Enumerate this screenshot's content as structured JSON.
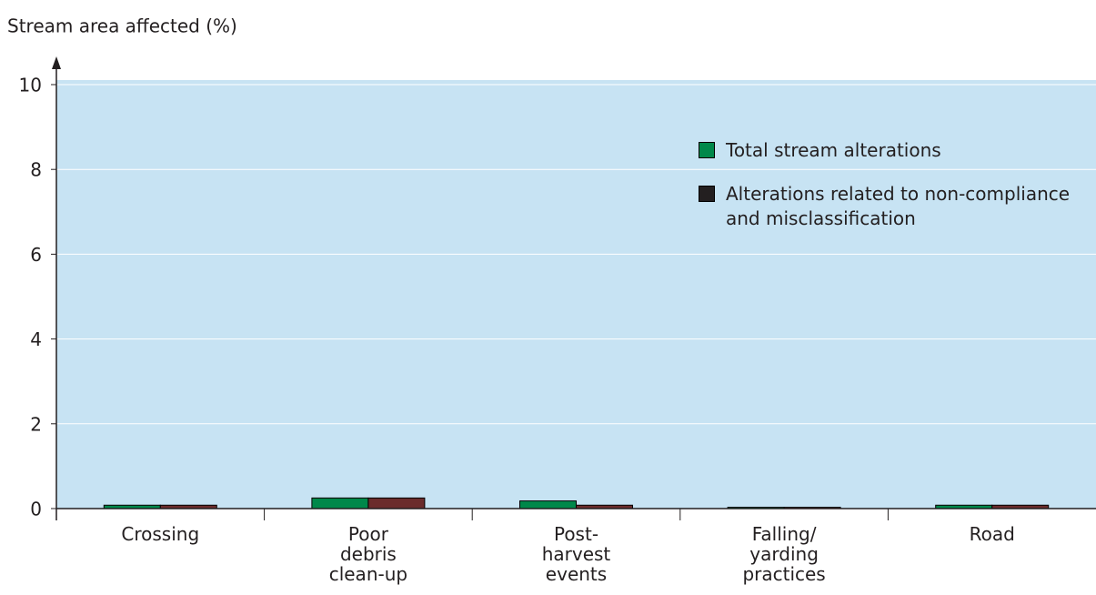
{
  "chart_data": {
    "type": "bar",
    "y_axis_label": "Stream area affected (%)",
    "categories": [
      [
        "Crossing"
      ],
      [
        "Poor",
        "debris",
        "clean-up"
      ],
      [
        "Post-",
        "harvest",
        "events"
      ],
      [
        "Falling/",
        "yarding",
        "practices"
      ],
      [
        "Road"
      ]
    ],
    "series": [
      {
        "name": "Total stream alterations",
        "color": "#00884a",
        "values": [
          0.08,
          0.25,
          0.18,
          0.03,
          0.08
        ]
      },
      {
        "name": "Alterations related to non-compliance and misclassification",
        "color": "#6b2c2c",
        "values": [
          0.08,
          0.25,
          0.08,
          0.03,
          0.08
        ]
      }
    ],
    "ylim": [
      0,
      10
    ],
    "yticks": [
      0,
      2,
      4,
      6,
      8,
      10
    ],
    "grid": true,
    "plot_background": "#c7e3f3",
    "legend": "upper right"
  }
}
